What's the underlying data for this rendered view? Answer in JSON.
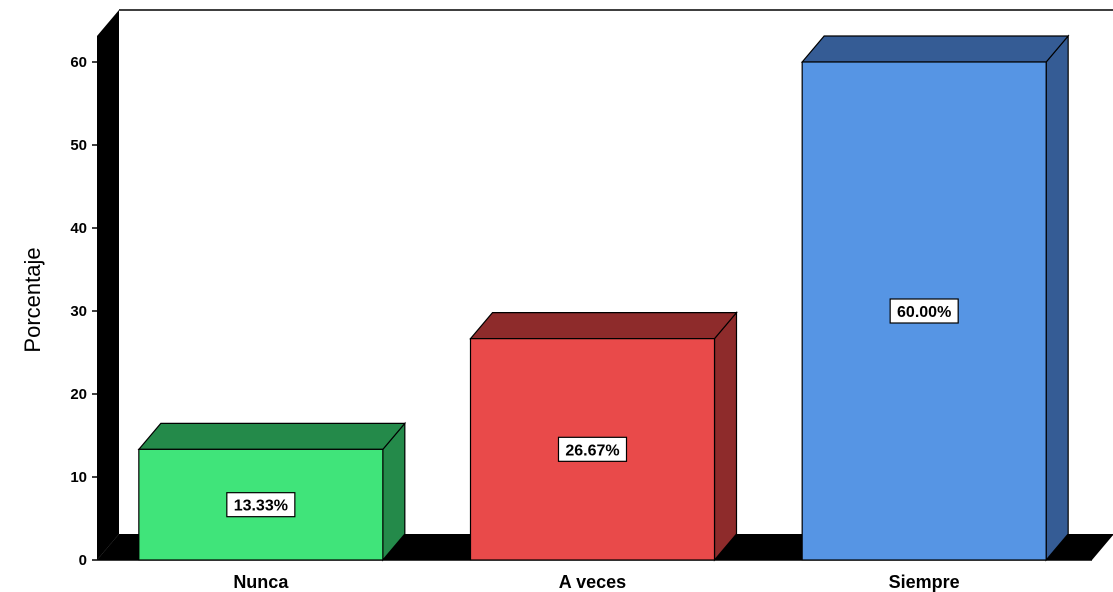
{
  "chart_data": {
    "type": "bar",
    "title": "",
    "xlabel": "",
    "ylabel": "Porcentaje",
    "categories": [
      "Nunca",
      "A veces",
      "Siempre"
    ],
    "values": [
      13.33,
      26.67,
      60.0
    ],
    "data_labels": [
      "13.33%",
      "26.67%",
      "60.00%"
    ],
    "colors": [
      "#40e47a",
      "#e94a4a",
      "#5695e4"
    ],
    "side_colors": [
      "#248a4a",
      "#8e2b2b",
      "#355c95"
    ],
    "ylim": [
      0,
      60
    ],
    "yticks": [
      0,
      10,
      20,
      30,
      40,
      50,
      60
    ],
    "grid": false,
    "style": "3d-bar"
  }
}
